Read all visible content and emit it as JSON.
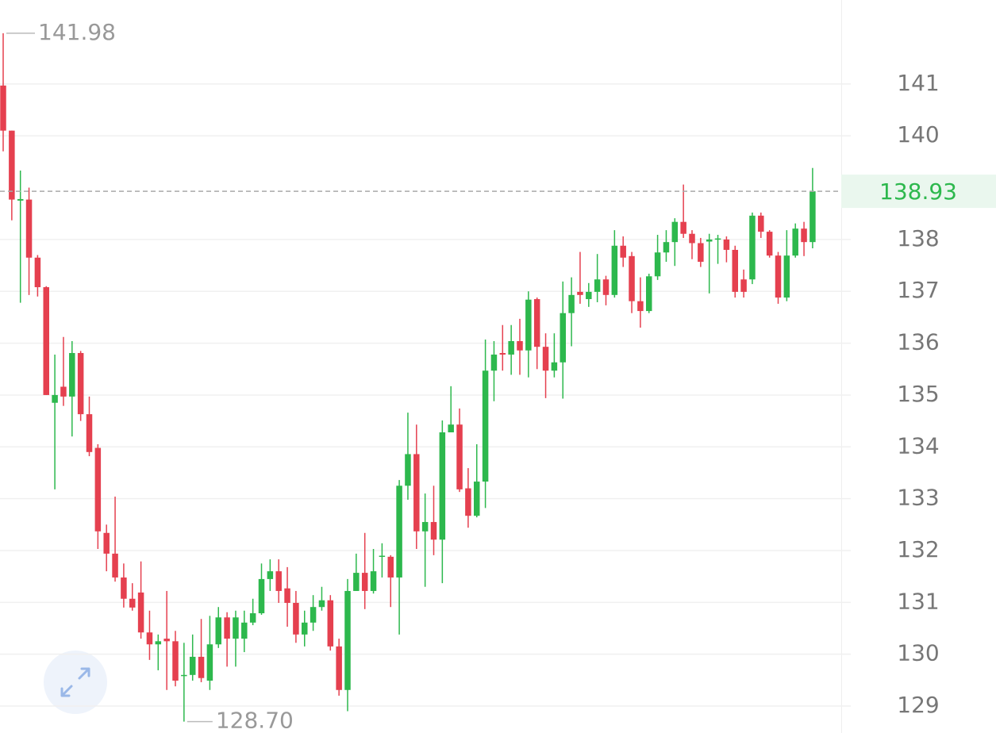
{
  "chart_data": {
    "type": "candlestick",
    "open": [
      140.97,
      140.1,
      138.75,
      138.77,
      137.65,
      137.08,
      134.85,
      135.16,
      134.97,
      135.81,
      134.63,
      133.98,
      132.34,
      131.94,
      131.48,
      131.07,
      131.19,
      130.42,
      130.19,
      130.3,
      130.25,
      129.58,
      129.6,
      129.95,
      129.49,
      130.19,
      130.71,
      130.3,
      130.3,
      130.61,
      130.79,
      131.45,
      131.6,
      131.27,
      130.99,
      130.38,
      130.61,
      130.91,
      131.04,
      130.15,
      129.31,
      131.22,
      131.57,
      131.22,
      131.88,
      131.88,
      131.48,
      133.25,
      133.86,
      132.37,
      132.55,
      132.21,
      134.28,
      134.43,
      133.2,
      132.67,
      133.33,
      135.47,
      135.81,
      135.78,
      136.04,
      135.86,
      136.85,
      135.93,
      135.47,
      135.63,
      136.58,
      136.99,
      136.85,
      136.99,
      137.23,
      136.93,
      137.88,
      137.68,
      136.81,
      136.62,
      137.29,
      137.75,
      137.95,
      138.34,
      138.11,
      137.93,
      137.96,
      138.0,
      138.0,
      137.8,
      137.23,
      137.23,
      138.46,
      138.15,
      137.69,
      136.88,
      137.69,
      138.21,
      137.95
    ],
    "high": [
      141.98,
      140.1,
      139.33,
      139.0,
      137.7,
      137.1,
      135.78,
      136.12,
      136.04,
      135.85,
      134.97,
      134.05,
      132.5,
      133.04,
      131.75,
      131.37,
      131.79,
      130.84,
      130.38,
      131.22,
      130.45,
      130.22,
      130.38,
      130.68,
      130.74,
      130.91,
      130.81,
      130.84,
      130.84,
      131.07,
      131.75,
      131.83,
      131.83,
      131.68,
      131.22,
      130.84,
      131.14,
      131.3,
      131.14,
      130.3,
      131.45,
      131.94,
      132.34,
      132.03,
      132.14,
      131.91,
      133.36,
      134.66,
      134.43,
      133.1,
      133.25,
      134.51,
      135.17,
      134.74,
      133.59,
      134.05,
      136.07,
      136.04,
      136.35,
      136.35,
      136.47,
      137.0,
      136.88,
      136.19,
      136.19,
      137.19,
      137.27,
      137.76,
      137.16,
      137.72,
      137.3,
      138.18,
      138.06,
      137.76,
      137.27,
      137.34,
      138.09,
      138.18,
      138.41,
      139.06,
      138.18,
      138.03,
      138.11,
      138.09,
      138.06,
      137.88,
      137.42,
      138.52,
      138.52,
      138.18,
      137.76,
      138.18,
      138.31,
      138.34,
      139.38
    ],
    "low": [
      139.7,
      138.37,
      136.78,
      136.93,
      136.9,
      135.0,
      133.18,
      134.79,
      134.2,
      134.5,
      133.82,
      132.03,
      131.6,
      131.4,
      130.9,
      130.84,
      130.3,
      129.89,
      129.69,
      129.31,
      129.38,
      128.7,
      129.49,
      129.46,
      129.31,
      130.12,
      129.76,
      129.76,
      130.04,
      130.56,
      130.76,
      131.22,
      130.99,
      130.53,
      130.22,
      130.15,
      130.45,
      130.84,
      130.07,
      129.2,
      128.9,
      131.22,
      130.87,
      131.17,
      131.48,
      130.91,
      130.38,
      132.98,
      132.03,
      131.3,
      131.91,
      131.37,
      134.28,
      133.13,
      132.44,
      132.64,
      132.82,
      134.88,
      135.47,
      135.39,
      135.39,
      135.34,
      135.5,
      134.94,
      135.34,
      134.93,
      135.94,
      136.76,
      136.7,
      136.79,
      136.73,
      136.88,
      137.47,
      136.58,
      136.3,
      136.58,
      137.22,
      137.57,
      137.49,
      138.03,
      137.62,
      137.47,
      136.96,
      137.53,
      137.56,
      136.88,
      136.88,
      137.14,
      138.03,
      137.65,
      136.76,
      136.81,
      137.65,
      137.68,
      137.83
    ],
    "close": [
      140.1,
      138.77,
      138.78,
      137.65,
      137.08,
      135.0,
      135.0,
      134.97,
      135.81,
      134.63,
      133.9,
      132.37,
      131.94,
      131.48,
      131.07,
      130.9,
      130.42,
      130.19,
      130.25,
      130.25,
      129.49,
      129.6,
      129.95,
      129.54,
      130.19,
      130.71,
      130.3,
      130.71,
      130.61,
      130.79,
      131.45,
      131.6,
      131.22,
      130.99,
      130.38,
      130.61,
      130.91,
      131.04,
      130.15,
      129.31,
      131.22,
      131.57,
      131.22,
      131.6,
      131.9,
      131.48,
      133.25,
      133.86,
      132.37,
      132.55,
      132.21,
      134.28,
      134.43,
      133.18,
      132.67,
      133.33,
      135.47,
      135.78,
      135.78,
      136.04,
      135.86,
      136.84,
      135.93,
      135.47,
      135.63,
      136.58,
      136.93,
      136.93,
      136.99,
      137.23,
      136.93,
      137.88,
      137.65,
      136.81,
      136.62,
      137.29,
      137.75,
      137.95,
      138.34,
      138.11,
      137.93,
      137.57,
      138.0,
      138.02,
      137.8,
      136.99,
      136.99,
      138.46,
      138.15,
      137.69,
      136.88,
      137.69,
      138.21,
      137.95,
      138.93
    ],
    "up_color": "#2db84d",
    "down_color": "#e5404f",
    "ylim": [
      128.48,
      142.62
    ],
    "yticks": [
      129,
      130,
      131,
      132,
      133,
      134,
      135,
      136,
      137,
      138,
      140,
      141
    ],
    "grid": true,
    "low_label": "128.70"
  }
}
